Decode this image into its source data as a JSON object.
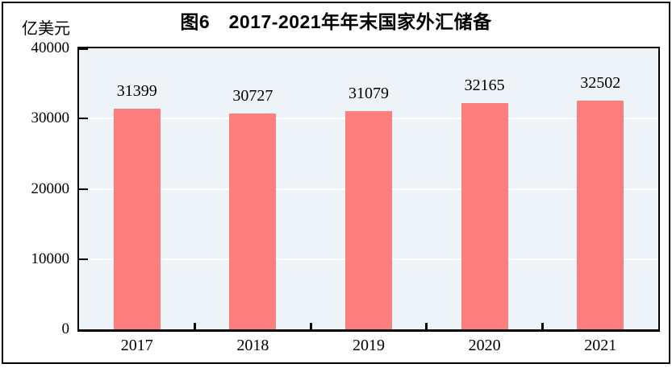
{
  "figure": {
    "title": "图6　2017-2021年年末国家外汇储备",
    "unit_label": "亿美元"
  },
  "chart_data": {
    "type": "bar",
    "title": "图6 2017-2021年年末国家外汇储备",
    "unit": "亿美元",
    "categories": [
      "2017",
      "2018",
      "2019",
      "2020",
      "2021"
    ],
    "values": [
      31399,
      30727,
      31079,
      32165,
      32502
    ],
    "value_labels": [
      "31399",
      "30727",
      "31079",
      "32165",
      "32502"
    ],
    "xlabel": "",
    "ylabel": "亿美元",
    "ylim": [
      0,
      40000
    ],
    "yticks": [
      0,
      10000,
      20000,
      30000,
      40000
    ],
    "ytick_labels": [
      "0",
      "10000",
      "20000",
      "30000",
      "40000"
    ],
    "grid": true,
    "legend_position": "none",
    "colors": {
      "bar": "#FC7E7E",
      "plot_background": "#EDF3F7",
      "gridline": "#FFFFFF",
      "axis": "#000000",
      "text": "#000000"
    }
  }
}
